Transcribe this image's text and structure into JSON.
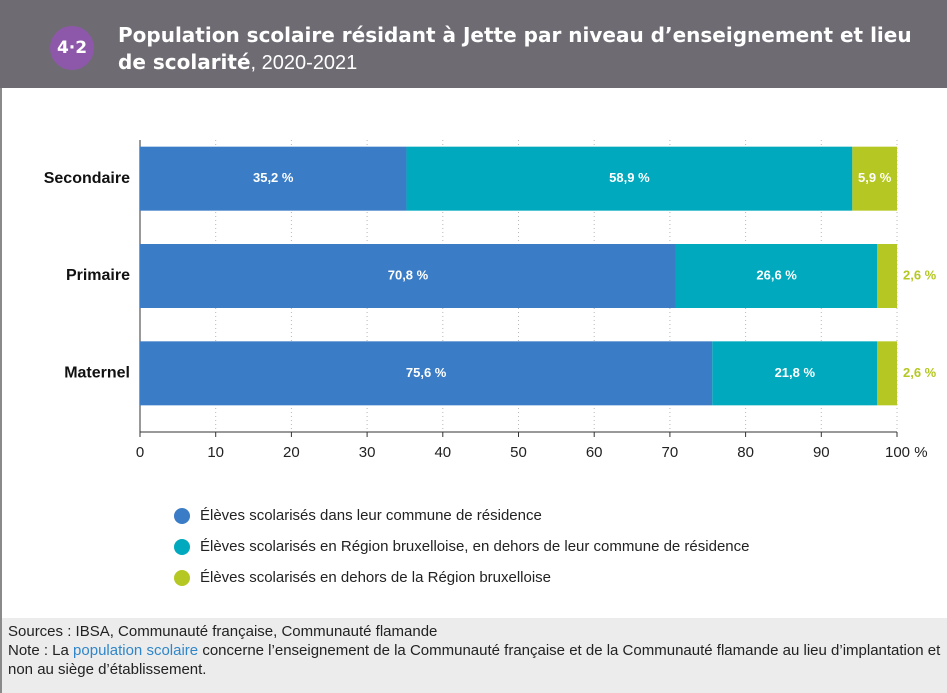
{
  "figure_number": "4·2",
  "chart_data": {
    "type": "bar",
    "orientation": "horizontal",
    "stacked": true,
    "title": "Population scolaire résidant à Jette par niveau d’enseignement et lieu de scolarité",
    "subtitle": ", 2020-2021",
    "categories": [
      "Secondaire",
      "Primaire",
      "Maternel"
    ],
    "series": [
      {
        "name": "Élèves scolarisés dans leur commune de résidence",
        "color": "#3a7cc6",
        "values": [
          35.2,
          70.8,
          75.6
        ],
        "value_labels": [
          "35,2 %",
          "70,8 %",
          "75,6 %"
        ]
      },
      {
        "name": "Élèves scolarisés en Région bruxelloise, en dehors de leur commune de résidence",
        "color": "#00a9bd",
        "values": [
          58.9,
          26.6,
          21.8
        ],
        "value_labels": [
          "58,9 %",
          "26,6 %",
          "21,8 %"
        ]
      },
      {
        "name": "Élèves scolarisés en dehors de la Région bruxelloise",
        "color": "#b5c722",
        "values": [
          5.9,
          2.6,
          2.6
        ],
        "value_labels": [
          "5,9 %",
          "2,6 %",
          "2,6 %"
        ]
      }
    ],
    "xlim": [
      0,
      100
    ],
    "xticks": [
      0,
      10,
      20,
      30,
      40,
      50,
      60,
      70,
      80,
      90,
      {
        "value": 100,
        "label": "100 %"
      }
    ],
    "grid": true,
    "legend": "bottom"
  },
  "footer": {
    "sources": "Sources : IBSA, Communauté française, Communauté flamande",
    "note_prefix": "Note : La",
    "note_link": "population scolaire",
    "note_suffix": "concerne l’enseignement de la Communauté française et de la Communauté flamande au lieu d’implantation et non au siège d’établissement."
  }
}
